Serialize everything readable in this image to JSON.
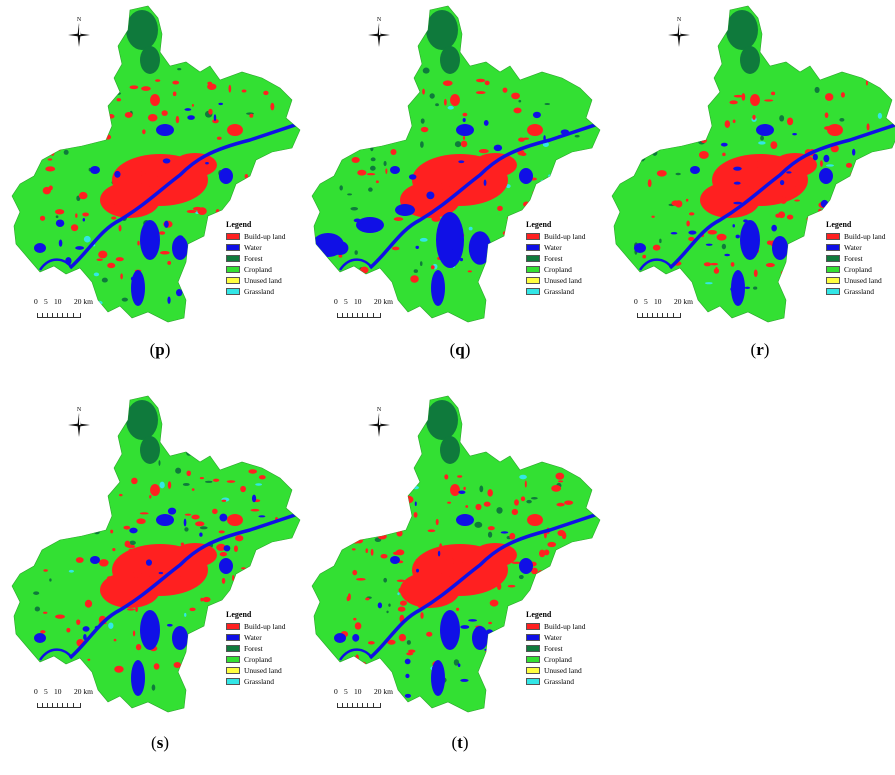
{
  "panels": [
    {
      "id": "p",
      "caption_open": "(",
      "caption_letter": "p",
      "caption_close": ")"
    },
    {
      "id": "q",
      "caption_open": "(",
      "caption_letter": "q",
      "caption_close": ")"
    },
    {
      "id": "r",
      "caption_open": "(",
      "caption_letter": "r",
      "caption_close": ")"
    },
    {
      "id": "s",
      "caption_open": "(",
      "caption_letter": "s",
      "caption_close": ")"
    },
    {
      "id": "t",
      "caption_open": "(",
      "caption_letter": "t",
      "caption_close": ")"
    }
  ],
  "legend": {
    "title": "Legend",
    "items": [
      {
        "label": "Build-up land",
        "color": "#ff2020"
      },
      {
        "label": "Water",
        "color": "#1010e6"
      },
      {
        "label": "Forest",
        "color": "#0f7a3c"
      },
      {
        "label": "Cropland",
        "color": "#33e033"
      },
      {
        "label": "Unused land",
        "color": "#ffff40"
      },
      {
        "label": "Grassland",
        "color": "#33e6e6"
      }
    ]
  },
  "scale": {
    "t0": "0",
    "t5": "5",
    "t10": "10",
    "t20": "20 km"
  },
  "north_label": "N",
  "colors": {
    "cropland": "#33e033",
    "water": "#1010e6",
    "forest": "#0f7a3c",
    "buildup": "#ff2020",
    "grassland": "#33e6e6"
  }
}
